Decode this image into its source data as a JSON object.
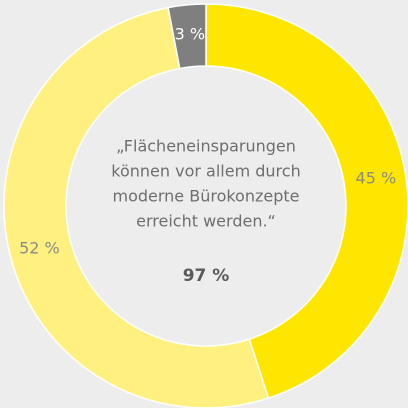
{
  "chart_data": {
    "type": "donut",
    "categories": [
      "45 %",
      "52 %",
      "3 %"
    ],
    "values": [
      45,
      52,
      3
    ],
    "value_labels": [
      "45 %",
      "52 %",
      "3 %"
    ],
    "colors": [
      "#ffe600",
      "#fff07f",
      "#7f7f7f"
    ],
    "label_colors": [
      "#8a8a8a",
      "#8a8a8a",
      "#ffffff"
    ],
    "center_text": [
      "„Flächeneinsparungen",
      "können vor allem durch",
      "moderne Bürokonzepte",
      "erreicht werden.“"
    ],
    "center_value": "97 %"
  }
}
